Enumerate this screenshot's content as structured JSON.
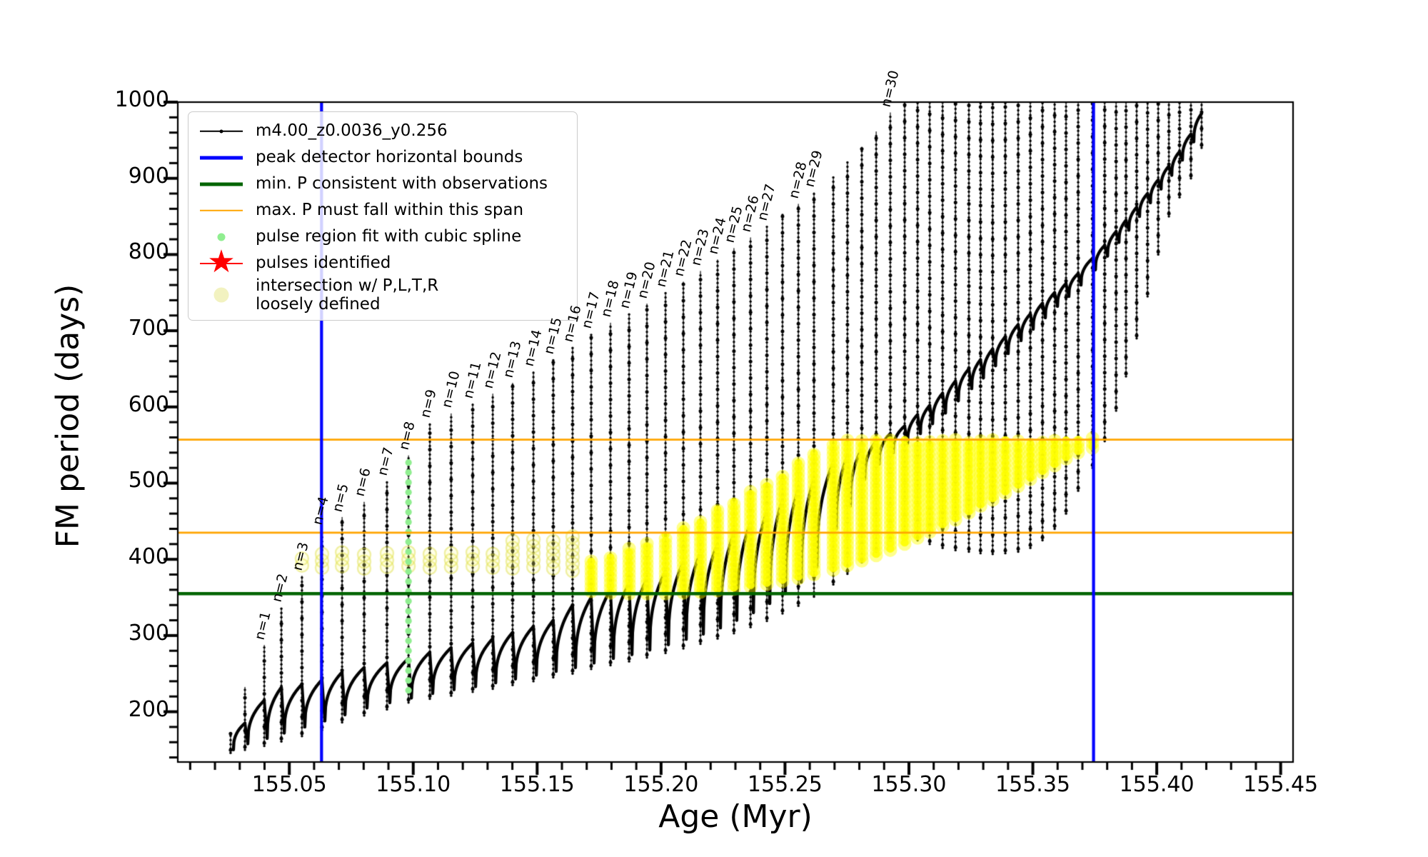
{
  "figure": {
    "background": "#ffffff"
  },
  "axes": {
    "xlabel": "Age (Myr)",
    "ylabel": "FM period (days)",
    "xlim": [
      155.005,
      155.455
    ],
    "ylim": [
      134,
      1000
    ],
    "xticks": [
      155.05,
      155.1,
      155.15,
      155.2,
      155.25,
      155.3,
      155.35,
      155.4,
      155.45
    ],
    "xtick_labels": [
      "155.05",
      "155.10",
      "155.15",
      "155.20",
      "155.25",
      "155.30",
      "155.35",
      "155.40",
      "155.45"
    ],
    "x_minor_step": 0.01,
    "yticks": [
      200,
      300,
      400,
      500,
      600,
      700,
      800,
      900,
      1000
    ],
    "ytick_labels": [
      "200",
      "300",
      "400",
      "500",
      "600",
      "700",
      "800",
      "900",
      "1000"
    ],
    "y_minor_step": 20,
    "grid": false
  },
  "legend": {
    "position": "upper left",
    "items": [
      {
        "label": "m4.00_z0.0036_y0.256",
        "type": "line-dot",
        "color": "#000000"
      },
      {
        "label": "peak detector horizontal bounds",
        "type": "line-thick",
        "color": "#0000ff"
      },
      {
        "label": "min. P consistent with observations",
        "type": "line-thick",
        "color": "#006400"
      },
      {
        "label": "max. P must fall within this span",
        "type": "line",
        "color": "#ffa500"
      },
      {
        "label": "pulse region fit with cubic spline",
        "type": "dot",
        "color": "#90ee90"
      },
      {
        "label": "pulses identified",
        "type": "star-line",
        "color": "#ff0000"
      },
      {
        "label": "intersection w/ P,L,T,R\nloosely defined",
        "type": "dot-large",
        "color": "#f2f2c0"
      }
    ]
  },
  "chart_data": {
    "type": "line",
    "series_name": "m4.00_z0.0036_y0.256",
    "title": "",
    "xlabel": "Age (Myr)",
    "ylabel": "FM period (days)",
    "ref_lines": {
      "blue_vertical_ages": [
        155.063,
        155.3745
      ],
      "green_min_period": 355,
      "orange_span_periods": [
        435,
        557
      ]
    },
    "spline_pulse": {
      "age": 155.0981,
      "from_P": 228,
      "to_P": 536,
      "color": "#90ee90"
    },
    "colors": {
      "track": "#000000",
      "bounds": "#0000ff",
      "min_p": "#006400",
      "max_span": "#ffa500",
      "spline": "#90ee90",
      "pulses": "#ff0000",
      "intersection": "#ffff00"
    },
    "pulse_fields": [
      "age_Myr",
      "peak_P",
      "spike_low_P",
      "dip_P_after",
      "shoulder_P_at",
      "label",
      "yellow_lo_P",
      "yellow_hi_P",
      "yellow_style_0none_1faint_2bright"
    ],
    "pulses": [
      [
        155.0263,
        172,
        146,
        150,
        null,
        null,
        null,
        null,
        0
      ],
      [
        155.0321,
        232,
        150,
        158,
        185,
        null,
        null,
        null,
        0
      ],
      [
        155.0399,
        287,
        155,
        165,
        215,
        "n=1",
        null,
        null,
        0
      ],
      [
        155.0468,
        336,
        161,
        172,
        232,
        "n=2",
        null,
        null,
        0
      ],
      [
        155.0551,
        378,
        168,
        180,
        236,
        "n=3",
        392,
        408,
        1
      ],
      [
        155.0632,
        438,
        176,
        188,
        242,
        "n=4",
        389,
        412,
        1
      ],
      [
        155.0713,
        455,
        186,
        196,
        252,
        "n=5",
        391,
        411,
        1
      ],
      [
        155.0802,
        475,
        195,
        205,
        258,
        "n=6",
        388,
        413,
        1
      ],
      [
        155.0894,
        502,
        203,
        212,
        264,
        "n=7",
        390,
        414,
        1
      ],
      [
        155.0981,
        536,
        212,
        218,
        270,
        "n=8",
        391,
        412,
        1
      ],
      [
        155.1067,
        578,
        217,
        224,
        278,
        "n=9",
        389,
        411,
        1
      ],
      [
        155.1153,
        591,
        221,
        229,
        284,
        "n=10",
        390,
        413,
        1
      ],
      [
        155.124,
        604,
        226,
        233,
        290,
        "n=11",
        391,
        414,
        1
      ],
      [
        155.1321,
        617,
        230,
        238,
        296,
        "n=12",
        389,
        412,
        1
      ],
      [
        155.1401,
        631,
        235,
        243,
        304,
        "n=13",
        388,
        424,
        1
      ],
      [
        155.1485,
        646,
        240,
        248,
        312,
        "n=14",
        390,
        428,
        1
      ],
      [
        155.1565,
        662,
        245,
        253,
        320,
        "n=15",
        388,
        430,
        1
      ],
      [
        155.1643,
        678,
        250,
        258,
        340,
        "n=16",
        385,
        432,
        1
      ],
      [
        155.1718,
        695,
        256,
        264,
        350,
        "n=17",
        358,
        400,
        2
      ],
      [
        155.1796,
        710,
        261,
        270,
        360,
        "n=18",
        356,
        408,
        2
      ],
      [
        155.1871,
        722,
        266,
        275,
        368,
        "n=19",
        355,
        415,
        2
      ],
      [
        155.1943,
        735,
        271,
        281,
        374,
        "n=20",
        355,
        424,
        2
      ],
      [
        155.2018,
        750,
        277,
        288,
        384,
        "n=21",
        355,
        433,
        2
      ],
      [
        155.209,
        764,
        283,
        295,
        396,
        "n=22",
        356,
        444,
        2
      ],
      [
        155.2159,
        778,
        289,
        302,
        408,
        "n=23",
        357,
        454,
        2
      ],
      [
        155.2228,
        793,
        296,
        310,
        420,
        "n=24",
        359,
        466,
        2
      ],
      [
        155.2294,
        808,
        303,
        320,
        434,
        "n=25",
        361,
        478,
        2
      ],
      [
        155.2361,
        822,
        311,
        330,
        448,
        "n=26",
        364,
        490,
        2
      ],
      [
        155.2427,
        837,
        319,
        342,
        462,
        "n=27",
        367,
        502,
        2
      ],
      [
        155.249,
        852,
        329,
        355,
        478,
        null,
        371,
        514,
        2
      ],
      [
        155.2554,
        866,
        339,
        370,
        492,
        "n=28",
        375,
        527,
        2
      ],
      [
        155.2617,
        881,
        351,
        390,
        505,
        "n=29",
        380,
        540,
        2
      ],
      [
        155.2695,
        902,
        367,
        440,
        527,
        null,
        386,
        553,
        2
      ],
      [
        155.2752,
        921,
        381,
        470,
        535,
        null,
        392,
        557,
        2
      ],
      [
        155.281,
        941,
        396,
        505,
        545,
        null,
        398,
        557,
        2
      ],
      [
        155.2868,
        961,
        410,
        525,
        555,
        null,
        405,
        557,
        2
      ],
      [
        155.2925,
        986,
        424,
        540,
        565,
        "n=30",
        412,
        557,
        2
      ],
      [
        155.2983,
        1005,
        432,
        552,
        575,
        null,
        420,
        557,
        2
      ],
      [
        155.3035,
        1005,
        425,
        565,
        590,
        null,
        428,
        557,
        2
      ],
      [
        155.3084,
        1005,
        420,
        578,
        602,
        null,
        436,
        557,
        2
      ],
      [
        155.3136,
        1005,
        415,
        592,
        618,
        null,
        444,
        557,
        2
      ],
      [
        155.3188,
        1005,
        412,
        608,
        634,
        null,
        452,
        557,
        2
      ],
      [
        155.3242,
        1005,
        410,
        624,
        650,
        null,
        461,
        557,
        2
      ],
      [
        155.3289,
        1005,
        408,
        638,
        662,
        null,
        470,
        557,
        2
      ],
      [
        155.3338,
        1005,
        407,
        654,
        676,
        null,
        478,
        557,
        2
      ],
      [
        155.3389,
        1005,
        408,
        670,
        692,
        null,
        487,
        557,
        2
      ],
      [
        155.3441,
        1005,
        410,
        687,
        708,
        null,
        496,
        557,
        2
      ],
      [
        155.349,
        1005,
        415,
        702,
        722,
        null,
        505,
        557,
        2
      ],
      [
        155.3539,
        1005,
        425,
        717,
        736,
        null,
        514,
        557,
        2
      ],
      [
        155.3588,
        1005,
        440,
        732,
        750,
        null,
        523,
        557,
        2
      ],
      [
        155.3634,
        1005,
        460,
        745,
        762,
        null,
        532,
        557,
        2
      ],
      [
        155.3683,
        1005,
        490,
        760,
        775,
        null,
        540,
        558,
        2
      ],
      [
        155.3741,
        1005,
        520,
        780,
        795,
        null,
        546,
        560,
        2
      ],
      [
        155.379,
        1005,
        555,
        798,
        812,
        null,
        null,
        null,
        0
      ],
      [
        155.3836,
        1005,
        595,
        816,
        830,
        null,
        null,
        null,
        0
      ],
      [
        155.3876,
        1005,
        640,
        832,
        845,
        null,
        null,
        null,
        0
      ],
      [
        155.3919,
        1005,
        690,
        850,
        862,
        null,
        null,
        null,
        0
      ],
      [
        155.3963,
        1005,
        745,
        868,
        880,
        null,
        null,
        null,
        0
      ],
      [
        155.4006,
        1005,
        800,
        886,
        898,
        null,
        null,
        null,
        0
      ],
      [
        155.4049,
        1005,
        850,
        904,
        916,
        null,
        null,
        null,
        0
      ],
      [
        155.4092,
        1005,
        875,
        924,
        935,
        null,
        null,
        null,
        0
      ],
      [
        155.4138,
        1005,
        900,
        948,
        958,
        null,
        null,
        null,
        0
      ],
      [
        155.4181,
        1005,
        940,
        null,
        985,
        null,
        null,
        null,
        0
      ]
    ]
  }
}
